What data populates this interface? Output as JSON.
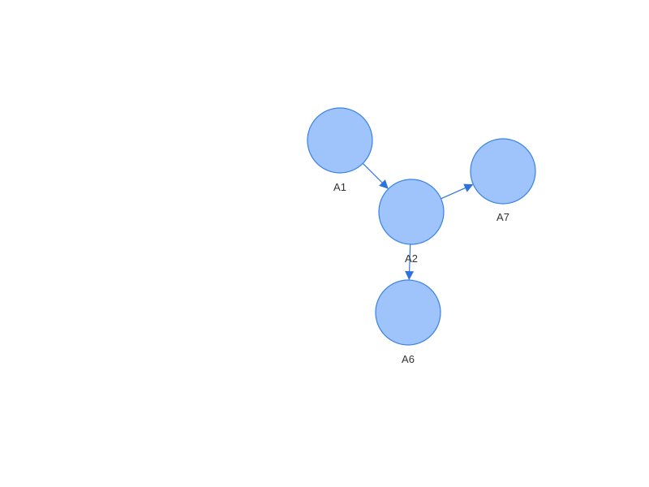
{
  "diagram": {
    "colors": {
      "node_fill": "#9ec4fb",
      "node_stroke": "#3b82e6",
      "edge": "#2f73da",
      "label": "#333333"
    },
    "nodes": [
      {
        "id": "A1",
        "label": "A1"
      },
      {
        "id": "A2",
        "label": "A2"
      },
      {
        "id": "A7",
        "label": "A7"
      },
      {
        "id": "A6",
        "label": "A6"
      }
    ],
    "edges": [
      {
        "from": "A1",
        "to": "A2"
      },
      {
        "from": "A2",
        "to": "A7"
      },
      {
        "from": "A2",
        "to": "A6"
      }
    ]
  }
}
